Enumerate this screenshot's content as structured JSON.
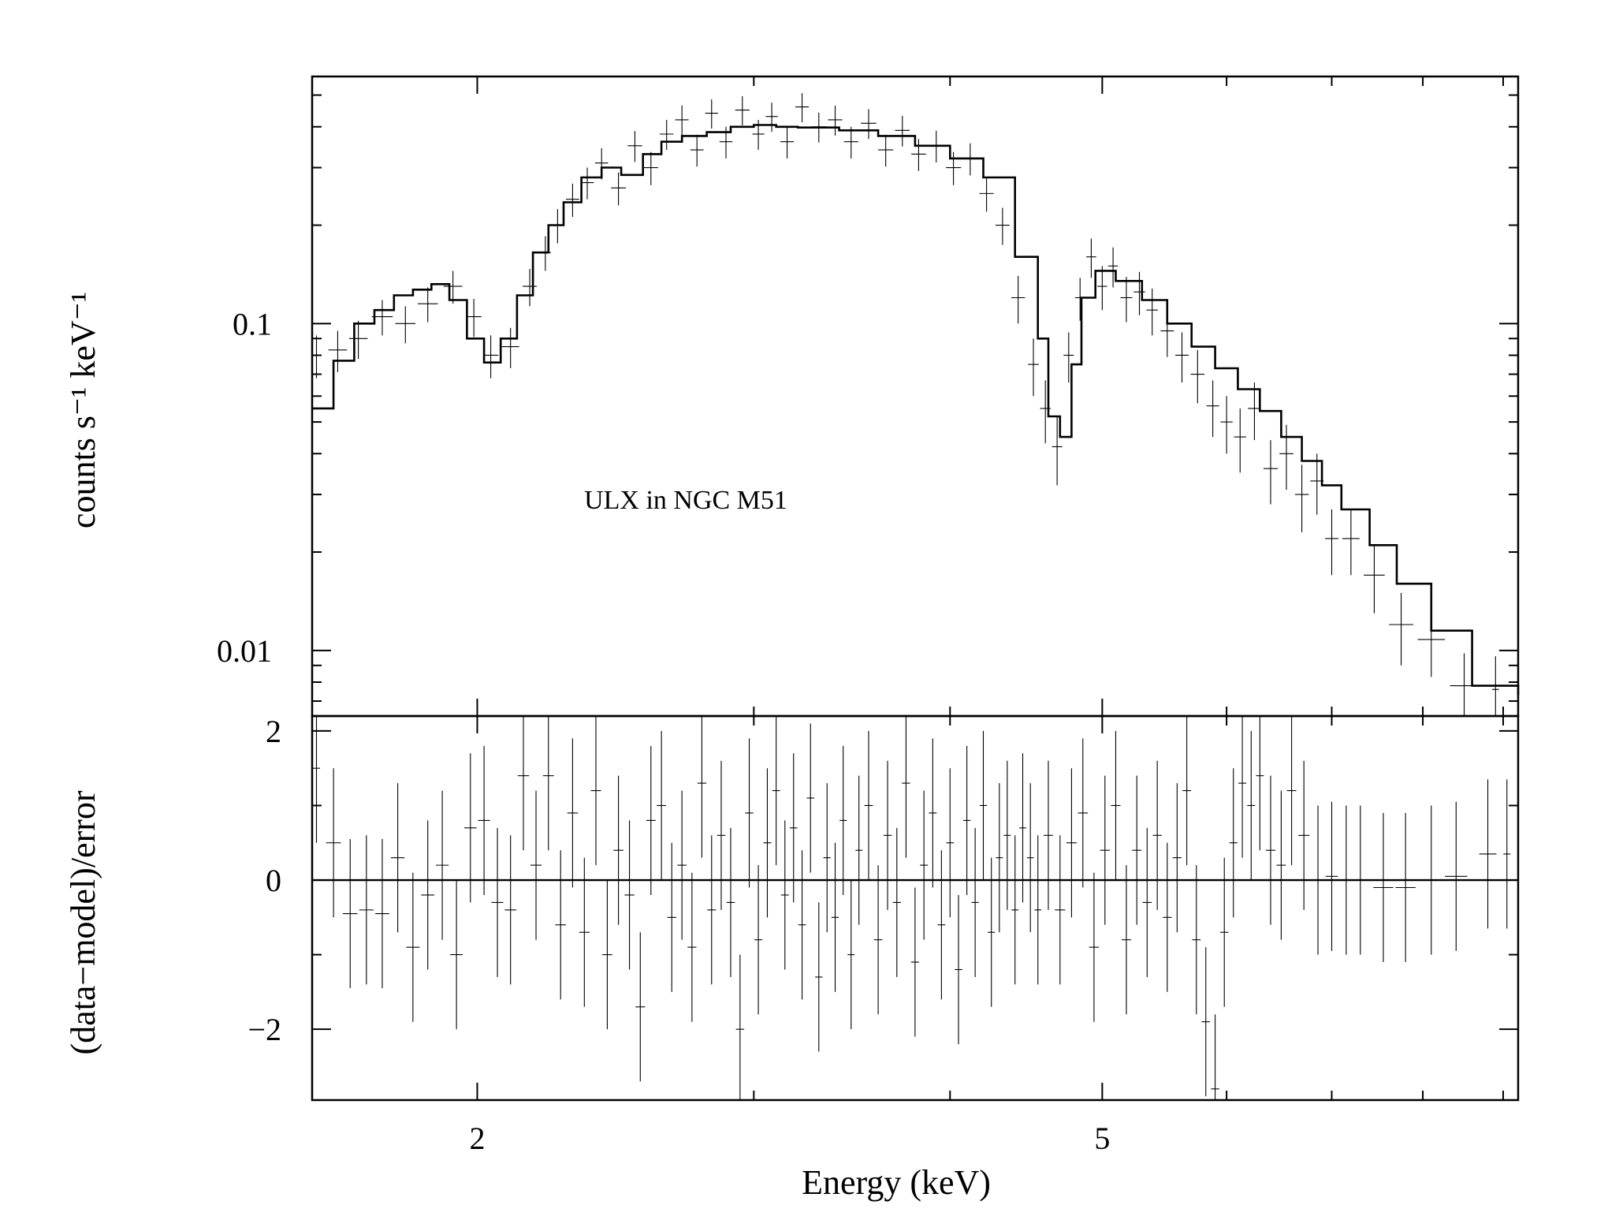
{
  "chart_data": [
    {
      "panel": "spectrum",
      "type": "line",
      "annotation": "ULX in NGC M51",
      "ylabel": "counts s⁻¹ keV⁻¹",
      "yscale": "log",
      "xscale": "log",
      "xlim": [
        1.57,
        9.2
      ],
      "ylim": [
        0.0063,
        0.57
      ],
      "yticks": [
        {
          "value": 0.1,
          "label": "0.1"
        },
        {
          "value": 0.01,
          "label": "0.01"
        }
      ],
      "model": {
        "x": [
          1.57,
          1.62,
          1.67,
          1.72,
          1.77,
          1.82,
          1.87,
          1.92,
          1.97,
          2.02,
          2.07,
          2.12,
          2.17,
          2.22,
          2.27,
          2.33,
          2.4,
          2.47,
          2.55,
          2.62,
          2.7,
          2.8,
          2.9,
          3.0,
          3.1,
          3.2,
          3.4,
          3.6,
          3.8,
          4.0,
          4.2,
          4.4,
          4.55,
          4.62,
          4.7,
          4.78,
          4.85,
          4.95,
          5.1,
          5.3,
          5.5,
          5.7,
          5.9,
          6.1,
          6.3,
          6.5,
          6.7,
          6.9,
          7.1,
          7.4,
          7.7,
          8.1,
          8.6,
          9.2
        ],
        "y": [
          0.055,
          0.077,
          0.1,
          0.11,
          0.122,
          0.127,
          0.132,
          0.118,
          0.09,
          0.076,
          0.09,
          0.122,
          0.165,
          0.2,
          0.235,
          0.28,
          0.3,
          0.285,
          0.33,
          0.36,
          0.375,
          0.385,
          0.4,
          0.405,
          0.4,
          0.398,
          0.39,
          0.375,
          0.35,
          0.32,
          0.28,
          0.16,
          0.09,
          0.052,
          0.045,
          0.075,
          0.12,
          0.145,
          0.135,
          0.118,
          0.1,
          0.085,
          0.073,
          0.063,
          0.054,
          0.045,
          0.038,
          0.032,
          0.027,
          0.021,
          0.016,
          0.0115,
          0.0078,
          0.0073
        ]
      },
      "data_points": [
        [
          1.58,
          0.08,
          0.012
        ],
        [
          1.63,
          0.083,
          0.012
        ],
        [
          1.68,
          0.09,
          0.012
        ],
        [
          1.74,
          0.105,
          0.013
        ],
        [
          1.8,
          0.1,
          0.013
        ],
        [
          1.86,
          0.115,
          0.014
        ],
        [
          1.93,
          0.13,
          0.015
        ],
        [
          1.99,
          0.105,
          0.014
        ],
        [
          2.04,
          0.08,
          0.012
        ],
        [
          2.1,
          0.085,
          0.012
        ],
        [
          2.16,
          0.13,
          0.017
        ],
        [
          2.21,
          0.165,
          0.02
        ],
        [
          2.25,
          0.2,
          0.024
        ],
        [
          2.3,
          0.24,
          0.028
        ],
        [
          2.35,
          0.27,
          0.03
        ],
        [
          2.4,
          0.31,
          0.034
        ],
        [
          2.46,
          0.26,
          0.03
        ],
        [
          2.52,
          0.35,
          0.038
        ],
        [
          2.58,
          0.3,
          0.035
        ],
        [
          2.64,
          0.38,
          0.04
        ],
        [
          2.7,
          0.42,
          0.045
        ],
        [
          2.76,
          0.34,
          0.038
        ],
        [
          2.82,
          0.44,
          0.045
        ],
        [
          2.88,
          0.36,
          0.04
        ],
        [
          2.95,
          0.45,
          0.046
        ],
        [
          3.02,
          0.38,
          0.04
        ],
        [
          3.08,
          0.43,
          0.044
        ],
        [
          3.15,
          0.36,
          0.04
        ],
        [
          3.22,
          0.46,
          0.047
        ],
        [
          3.3,
          0.4,
          0.042
        ],
        [
          3.38,
          0.42,
          0.044
        ],
        [
          3.46,
          0.36,
          0.04
        ],
        [
          3.55,
          0.41,
          0.043
        ],
        [
          3.64,
          0.34,
          0.038
        ],
        [
          3.73,
          0.39,
          0.042
        ],
        [
          3.82,
          0.33,
          0.037
        ],
        [
          3.92,
          0.35,
          0.039
        ],
        [
          4.02,
          0.3,
          0.035
        ],
        [
          4.12,
          0.32,
          0.036
        ],
        [
          4.22,
          0.25,
          0.03
        ],
        [
          4.32,
          0.2,
          0.026
        ],
        [
          4.42,
          0.12,
          0.02
        ],
        [
          4.52,
          0.075,
          0.015
        ],
        [
          4.6,
          0.055,
          0.012
        ],
        [
          4.68,
          0.042,
          0.01
        ],
        [
          4.76,
          0.08,
          0.014
        ],
        [
          4.84,
          0.12,
          0.018
        ],
        [
          4.92,
          0.16,
          0.022
        ],
        [
          5.0,
          0.13,
          0.02
        ],
        [
          5.08,
          0.15,
          0.021
        ],
        [
          5.18,
          0.12,
          0.019
        ],
        [
          5.28,
          0.125,
          0.019
        ],
        [
          5.38,
          0.11,
          0.018
        ],
        [
          5.5,
          0.095,
          0.016
        ],
        [
          5.62,
          0.08,
          0.014
        ],
        [
          5.75,
          0.07,
          0.013
        ],
        [
          5.88,
          0.056,
          0.011
        ],
        [
          6.0,
          0.05,
          0.01
        ],
        [
          6.12,
          0.045,
          0.01
        ],
        [
          6.25,
          0.055,
          0.011
        ],
        [
          6.4,
          0.036,
          0.008
        ],
        [
          6.55,
          0.04,
          0.009
        ],
        [
          6.7,
          0.03,
          0.007
        ],
        [
          6.85,
          0.033,
          0.007
        ],
        [
          7.0,
          0.022,
          0.005
        ],
        [
          7.2,
          0.022,
          0.005
        ],
        [
          7.45,
          0.017,
          0.004
        ],
        [
          7.75,
          0.012,
          0.003
        ],
        [
          8.1,
          0.0108,
          0.0025
        ],
        [
          8.5,
          0.0078,
          0.002
        ],
        [
          8.9,
          0.0076,
          0.002
        ]
      ]
    },
    {
      "panel": "residuals",
      "type": "scatter",
      "xlabel": "Energy (keV)",
      "ylabel": "(data−model)/error",
      "xscale": "log",
      "xlim": [
        1.57,
        9.2
      ],
      "ylim": [
        -2.95,
        2.2
      ],
      "xticks": [
        {
          "value": 2,
          "label": "2"
        },
        {
          "value": 5,
          "label": "5"
        }
      ],
      "yticks": [
        {
          "value": 2,
          "label": "2"
        },
        {
          "value": 0,
          "label": "0"
        },
        {
          "value": -2,
          "label": "−2"
        }
      ],
      "zero_line": 0,
      "data_points": [
        [
          1.58,
          1.5
        ],
        [
          1.62,
          0.5
        ],
        [
          1.66,
          -0.45
        ],
        [
          1.7,
          -0.4
        ],
        [
          1.74,
          -0.45
        ],
        [
          1.78,
          0.3
        ],
        [
          1.82,
          -0.9
        ],
        [
          1.86,
          -0.2
        ],
        [
          1.9,
          0.2
        ],
        [
          1.94,
          -1.0
        ],
        [
          1.98,
          0.7
        ],
        [
          2.02,
          0.8
        ],
        [
          2.06,
          -0.3
        ],
        [
          2.1,
          -0.4
        ],
        [
          2.14,
          1.4
        ],
        [
          2.18,
          0.2
        ],
        [
          2.22,
          1.4
        ],
        [
          2.26,
          -0.6
        ],
        [
          2.3,
          0.9
        ],
        [
          2.34,
          -0.7
        ],
        [
          2.38,
          1.2
        ],
        [
          2.42,
          -1.0
        ],
        [
          2.46,
          0.4
        ],
        [
          2.5,
          -0.2
        ],
        [
          2.54,
          -1.7
        ],
        [
          2.58,
          0.8
        ],
        [
          2.62,
          1.0
        ],
        [
          2.66,
          -0.5
        ],
        [
          2.7,
          0.2
        ],
        [
          2.74,
          -0.9
        ],
        [
          2.78,
          1.3
        ],
        [
          2.82,
          -0.4
        ],
        [
          2.86,
          0.6
        ],
        [
          2.9,
          -0.3
        ],
        [
          2.94,
          -2.0
        ],
        [
          2.98,
          0.9
        ],
        [
          3.02,
          -0.8
        ],
        [
          3.06,
          0.5
        ],
        [
          3.1,
          1.2
        ],
        [
          3.14,
          -0.2
        ],
        [
          3.18,
          0.7
        ],
        [
          3.22,
          -0.6
        ],
        [
          3.26,
          1.1
        ],
        [
          3.3,
          -1.3
        ],
        [
          3.34,
          0.3
        ],
        [
          3.38,
          -0.5
        ],
        [
          3.42,
          0.8
        ],
        [
          3.46,
          -1.0
        ],
        [
          3.5,
          0.4
        ],
        [
          3.55,
          1.0
        ],
        [
          3.6,
          -0.8
        ],
        [
          3.65,
          0.6
        ],
        [
          3.7,
          -0.3
        ],
        [
          3.75,
          1.3
        ],
        [
          3.8,
          -1.1
        ],
        [
          3.85,
          0.2
        ],
        [
          3.9,
          0.9
        ],
        [
          3.95,
          -0.6
        ],
        [
          4.0,
          0.5
        ],
        [
          4.05,
          -1.2
        ],
        [
          4.1,
          0.8
        ],
        [
          4.15,
          -0.3
        ],
        [
          4.2,
          1.0
        ],
        [
          4.25,
          -0.7
        ],
        [
          4.3,
          0.3
        ],
        [
          4.35,
          0.6
        ],
        [
          4.4,
          -0.4
        ],
        [
          4.45,
          0.7
        ],
        [
          4.5,
          0.3
        ],
        [
          4.55,
          -0.4
        ],
        [
          4.62,
          0.6
        ],
        [
          4.7,
          -0.4
        ],
        [
          4.78,
          0.5
        ],
        [
          4.86,
          0.9
        ],
        [
          4.94,
          -0.9
        ],
        [
          5.02,
          0.4
        ],
        [
          5.1,
          1.0
        ],
        [
          5.18,
          -0.8
        ],
        [
          5.26,
          0.4
        ],
        [
          5.34,
          -0.3
        ],
        [
          5.42,
          0.6
        ],
        [
          5.5,
          -0.5
        ],
        [
          5.58,
          0.3
        ],
        [
          5.66,
          1.2
        ],
        [
          5.74,
          -0.8
        ],
        [
          5.82,
          -1.9
        ],
        [
          5.9,
          -2.8
        ],
        [
          5.98,
          -0.7
        ],
        [
          6.06,
          0.5
        ],
        [
          6.14,
          1.3
        ],
        [
          6.22,
          1.0
        ],
        [
          6.3,
          1.4
        ],
        [
          6.4,
          0.4
        ],
        [
          6.5,
          0.2
        ],
        [
          6.6,
          1.2
        ],
        [
          6.72,
          0.6
        ],
        [
          6.86,
          0.0
        ],
        [
          7.0,
          0.05
        ],
        [
          7.15,
          0.0
        ],
        [
          7.3,
          0.0
        ],
        [
          7.55,
          -0.1
        ],
        [
          7.8,
          -0.1
        ],
        [
          8.1,
          0.0
        ],
        [
          8.4,
          0.05
        ],
        [
          8.8,
          0.35
        ],
        [
          9.05,
          0.35
        ]
      ]
    }
  ]
}
